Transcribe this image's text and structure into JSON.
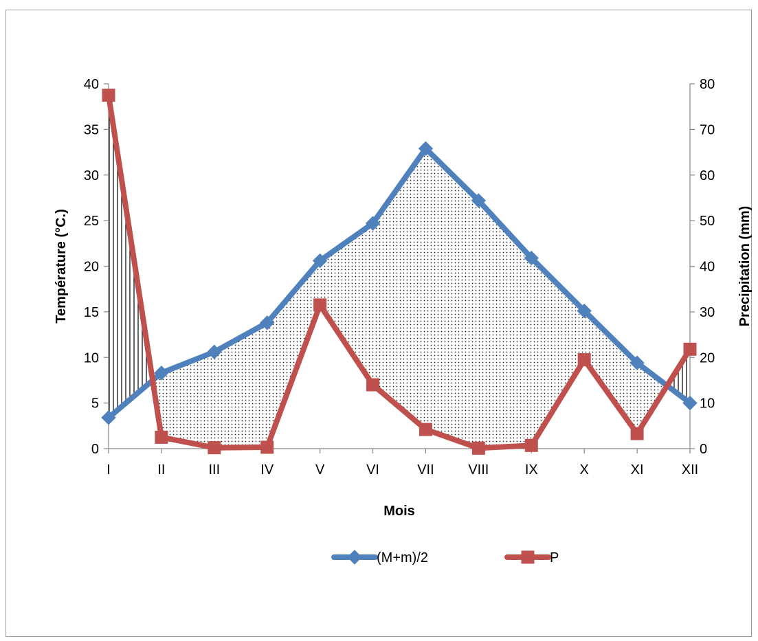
{
  "chart_data": {
    "type": "line",
    "title": "",
    "xlabel": "Mois",
    "ylabel": "Température (°C.)",
    "y2label": "Precipitation (mm)",
    "categories": [
      "I",
      "II",
      "III",
      "IV",
      "V",
      "VI",
      "VII",
      "VIII",
      "IX",
      "X",
      "XI",
      "XII"
    ],
    "ylim": [
      0,
      40
    ],
    "y2lim": [
      0,
      80
    ],
    "yticks": [
      "0",
      "5",
      "10",
      "15",
      "20",
      "25",
      "30",
      "35",
      "40"
    ],
    "y2ticks": [
      "0",
      "10",
      "20",
      "30",
      "40",
      "50",
      "60",
      "70",
      "80"
    ],
    "grid": false,
    "legend_position": "bottom",
    "series": [
      {
        "name": "(M+m)/2",
        "axis": "left",
        "color": "#4f81bd",
        "marker": "diamond",
        "values": [
          3.4,
          8.3,
          10.6,
          13.8,
          20.6,
          24.7,
          32.9,
          27.2,
          20.9,
          15.1,
          9.4,
          5.0
        ]
      },
      {
        "name": "P",
        "axis": "right",
        "color": "#c0504d",
        "marker": "square",
        "values": [
          77.5,
          2.5,
          0.2,
          0.3,
          31.5,
          14.0,
          4.2,
          0.1,
          0.7,
          19.5,
          3.3,
          21.8
        ]
      }
    ]
  }
}
